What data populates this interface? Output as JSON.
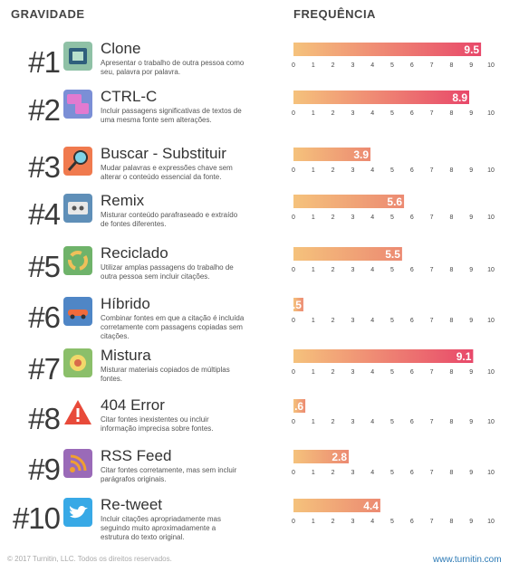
{
  "header": {
    "severity": "GRAVIDADE",
    "frequency": "FREQUÊNCIA"
  },
  "footer": {
    "copyright": "© 2017 Turnitin, LLC. Todos os direitos reservados.",
    "website": "www.turnitin.com"
  },
  "colors": {
    "bar_start": "#f5c27c",
    "bar_end": "#e8486a",
    "text": "#333333",
    "link": "#2b79b5"
  },
  "axis_ticks": [
    "0",
    "1",
    "2",
    "3",
    "4",
    "5",
    "6",
    "7",
    "8",
    "9",
    "10"
  ],
  "items": [
    {
      "rank": "#1",
      "icon": "copy-paste-icon",
      "title": "Clone",
      "desc": "Apresentar o trabalho de outra pessoa como seu, palavra por palavra.",
      "value_label": "9.5"
    },
    {
      "rank": "#2",
      "icon": "ctrl-c-icon",
      "title": "CTRL-C",
      "desc": "Incluir passagens significativas de textos de uma mesma fonte sem alterações.",
      "value_label": "8.9"
    },
    {
      "rank": "#3",
      "icon": "magnifier-icon",
      "title": "Buscar - Substituir",
      "desc": "Mudar palavras e expressões chave sem alterar o conteúdo essencial da fonte.",
      "value_label": "3.9"
    },
    {
      "rank": "#4",
      "icon": "cassette-icon",
      "title": "Remix",
      "desc": "Misturar conteúdo parafraseado e extraído de fontes diferentes.",
      "value_label": "5.6"
    },
    {
      "rank": "#5",
      "icon": "recycle-icon",
      "title": "Reciclado",
      "desc": "Utilizar amplas passagens do trabalho de outra pessoa sem incluir citações.",
      "value_label": "5.5"
    },
    {
      "rank": "#6",
      "icon": "hybrid-car-icon",
      "title": "Híbrido",
      "desc": "Combinar fontes em que a citação é incluída corretamente com passagens copiadas sem citações.",
      "value_label": ".5"
    },
    {
      "rank": "#7",
      "icon": "mixer-icon",
      "title": "Mistura",
      "desc": "Misturar materiais copiados de múltiplas fontes.",
      "value_label": "9.1"
    },
    {
      "rank": "#8",
      "icon": "warning-icon",
      "title": "404 Error",
      "desc": "Citar fontes inexistentes ou incluir informação imprecisa sobre fontes.",
      "value_label": ".6"
    },
    {
      "rank": "#9",
      "icon": "rss-icon",
      "title": "RSS Feed",
      "desc": "Citar fontes corretamente, mas sem incluir parágrafos originais.",
      "value_label": "2.8"
    },
    {
      "rank": "#10",
      "icon": "twitter-bird-icon",
      "title": "Re-tweet",
      "desc": "Incluir citações apropriadamente mas seguindo muito aproximadamente a estrutura do texto original.",
      "value_label": "4.4"
    }
  ],
  "chart_data": {
    "type": "bar",
    "orientation": "horizontal",
    "categories": [
      "Clone",
      "CTRL-C",
      "Buscar - Substituir",
      "Remix",
      "Reciclado",
      "Híbrido",
      "Mistura",
      "404 Error",
      "RSS Feed",
      "Re-tweet"
    ],
    "values": [
      9.5,
      8.9,
      3.9,
      5.6,
      5.5,
      0.5,
      9.1,
      0.6,
      2.8,
      4.4
    ],
    "xlim": [
      0,
      10
    ],
    "title": "FREQUÊNCIA",
    "xlabel": "",
    "ylabel": ""
  }
}
